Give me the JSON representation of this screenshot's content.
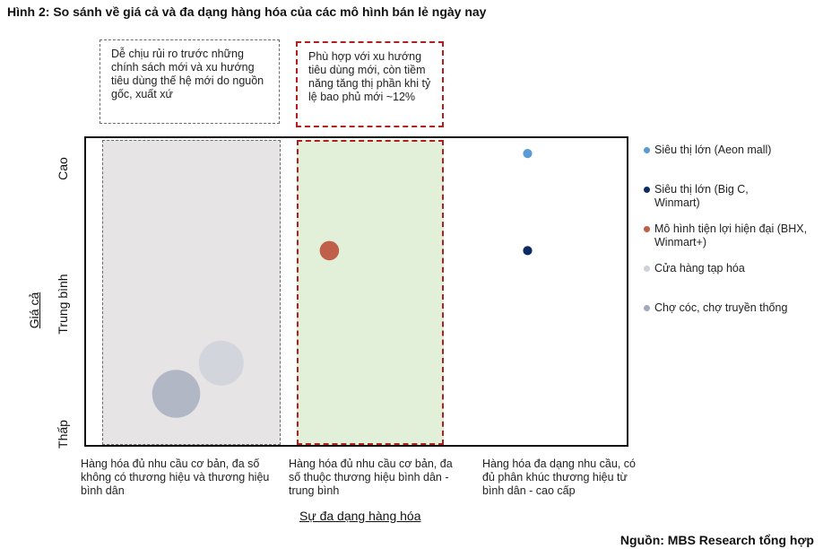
{
  "title": "Hình 2: So sánh về giá cả và đa dạng hàng hóa của các mô hình bán lẻ ngày nay",
  "notes": {
    "gray": "Dễ chịu rủi ro trước những chính sách mới và xu hướng tiêu dùng thế hệ mới do nguồn gốc, xuất xứ",
    "red": "Phù hợp với xu hướng tiêu dùng mới, còn tiềm năng tăng thị phần khi tỷ lệ bao phủ mới ~12%"
  },
  "source": "Nguồn: MBS Research tổng hợp",
  "chart_data": {
    "type": "scatter",
    "title": "",
    "xlabel": "Sự đa dạng hàng hóa",
    "ylabel": "Giá cả",
    "x_categories": [
      "Hàng hóa đủ nhu cầu cơ bản, đa số không có thương hiệu và thương hiệu bình dân",
      "Hàng hóa đủ nhu cầu cơ bản, đa số thuộc thương hiệu bình dân - trung bình",
      "Hàng hóa đa dạng nhu cầu, có đủ phân khúc thương hiệu từ bình dân - cao cấp"
    ],
    "y_categories": [
      "Thấp",
      "Trung bình",
      "Cao"
    ],
    "legend_position": "right",
    "grid": false,
    "series": [
      {
        "name": "Siêu thị lớn (Aeon mall)",
        "color": "#5b9bd5",
        "x": 2.45,
        "y": 2.85,
        "size": 0.09
      },
      {
        "name": "Siêu thị lớn (Big C, Winmart)",
        "color": "#0d2b63",
        "x": 2.45,
        "y": 1.9,
        "size": 0.09
      },
      {
        "name": "Mô hình tiện lợi hiện đại (BHX, Winmart+)",
        "color": "#c0604a",
        "x": 1.35,
        "y": 1.9,
        "size": 0.19
      },
      {
        "name": "Cửa hàng tạp hóa",
        "color": "#cdd1da",
        "x": 0.75,
        "y": 0.8,
        "size": 0.44
      },
      {
        "name": "Chợ cóc, chợ truyền thống",
        "color": "#a3aabd",
        "x": 0.5,
        "y": 0.5,
        "size": 0.47
      }
    ]
  }
}
